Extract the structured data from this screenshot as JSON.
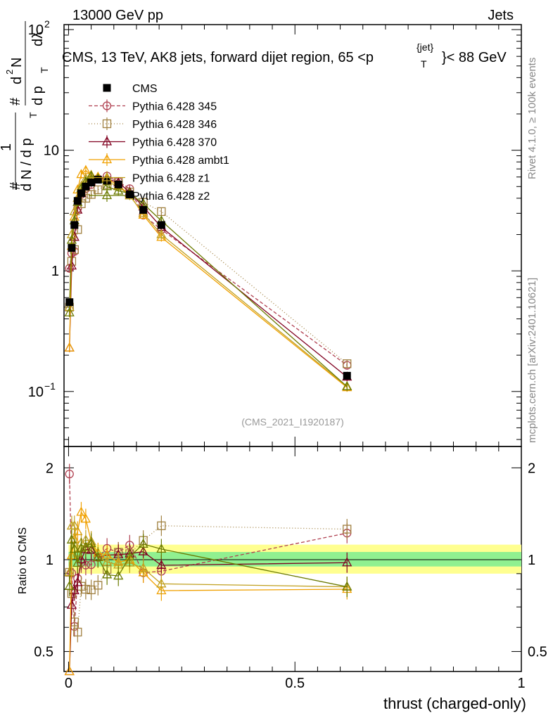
{
  "header": {
    "energy": "13000 GeV pp",
    "category": "Jets",
    "title_main": "CMS, 13 TeV, AK8 jets, forward dijet region, 65 <p",
    "title_sup": "{jet}",
    "title_sub": "T",
    "title_end": "}< 88 GeV",
    "analysis_id": "(CMS_2021_I1920187)",
    "side_rivet": "Rivet 4.1.0, ≥ 100k events",
    "side_site": "mcplots.cern.ch [arXiv:2401.10621]"
  },
  "axes": {
    "xlabel": "thrust (charged-only)",
    "ratio_ylabel": "Ratio to CMS",
    "ylabel_parts": [
      "#",
      "1",
      "d N / d p",
      "T",
      "#",
      "d",
      "2",
      "N",
      "d p",
      "T",
      "dλ"
    ],
    "main_yticks": [
      {
        "base": "10",
        "exp": "−1",
        "value": 0.1
      },
      {
        "base": "1",
        "exp": "",
        "value": 1
      },
      {
        "base": "10",
        "exp": "",
        "value": 10
      },
      {
        "base": "10",
        "exp": "2",
        "value": 100
      }
    ],
    "ratio_yticks": [
      "0.5",
      "1",
      "2"
    ],
    "xticks": [
      "0",
      "0.5",
      "1"
    ]
  },
  "chart_data": {
    "type": "line",
    "yscale": "log",
    "xlim": [
      -0.01,
      1.0
    ],
    "ylim": [
      0.035,
      110
    ],
    "ratio_ylim": [
      0.43,
      2.35
    ],
    "x": [
      0.002,
      0.007,
      0.013,
      0.02,
      0.028,
      0.038,
      0.05,
      0.065,
      0.085,
      0.11,
      0.135,
      0.165,
      0.205,
      0.615
    ],
    "series": [
      {
        "name": "CMS",
        "color": "#000000",
        "marker": "square-filled",
        "dash": "",
        "values": [
          0.55,
          1.55,
          2.4,
          3.8,
          4.4,
          5.0,
          5.4,
          5.7,
          5.6,
          5.2,
          4.3,
          3.2,
          2.4,
          0.135
        ]
      },
      {
        "name": "Pythia 6.428 345",
        "color": "#b04050",
        "marker": "circle-open",
        "dash": "5,3",
        "values": [
          1.05,
          1.4,
          1.45,
          3.3,
          4.3,
          4.8,
          5.2,
          5.8,
          6.1,
          5.5,
          4.8,
          2.9,
          2.2,
          0.165
        ]
      },
      {
        "name": "Pythia 6.428 346",
        "color": "#a08040",
        "marker": "square-open",
        "dash": "1,3",
        "values": [
          0.5,
          1.2,
          1.5,
          2.2,
          3.6,
          4.0,
          4.3,
          4.7,
          5.2,
          5.5,
          4.5,
          3.7,
          3.1,
          0.17
        ]
      },
      {
        "name": "Pythia 6.428 370",
        "color": "#800020",
        "marker": "triangle-open",
        "dash": "",
        "values": [
          0.23,
          1.1,
          1.9,
          3.2,
          4.4,
          5.4,
          5.8,
          5.8,
          5.8,
          5.4,
          4.5,
          3.4,
          2.3,
          0.132
        ]
      },
      {
        "name": "Pythia 6.428 ambt1",
        "color": "#f0a000",
        "marker": "triangle-open",
        "dash": "",
        "values": [
          0.23,
          1.6,
          2.8,
          4.7,
          6.3,
          6.8,
          6.2,
          6.0,
          5.8,
          5.1,
          4.3,
          2.9,
          1.9,
          0.108
        ]
      },
      {
        "name": "Pythia 6.428 z1",
        "color": "#c0a020",
        "marker": "triangle-open",
        "dash": "",
        "values": [
          0.5,
          2.0,
          3.1,
          4.0,
          5.0,
          5.8,
          6.2,
          5.8,
          5.5,
          5.0,
          4.2,
          3.0,
          2.0,
          0.11
        ]
      },
      {
        "name": "Pythia 6.428 z2",
        "color": "#6b7a00",
        "marker": "triangle-open",
        "dash": "",
        "values": [
          0.45,
          1.8,
          2.6,
          3.7,
          4.8,
          5.5,
          6.1,
          5.8,
          5.0,
          4.6,
          4.4,
          3.6,
          2.6,
          0.11
        ]
      }
    ],
    "ratio_band": {
      "inner": [
        0.95,
        1.06
      ],
      "outer": [
        0.9,
        1.12
      ],
      "inner_color": "#90f090",
      "outer_color": "#ffff90"
    },
    "legend_position": "top-left"
  }
}
